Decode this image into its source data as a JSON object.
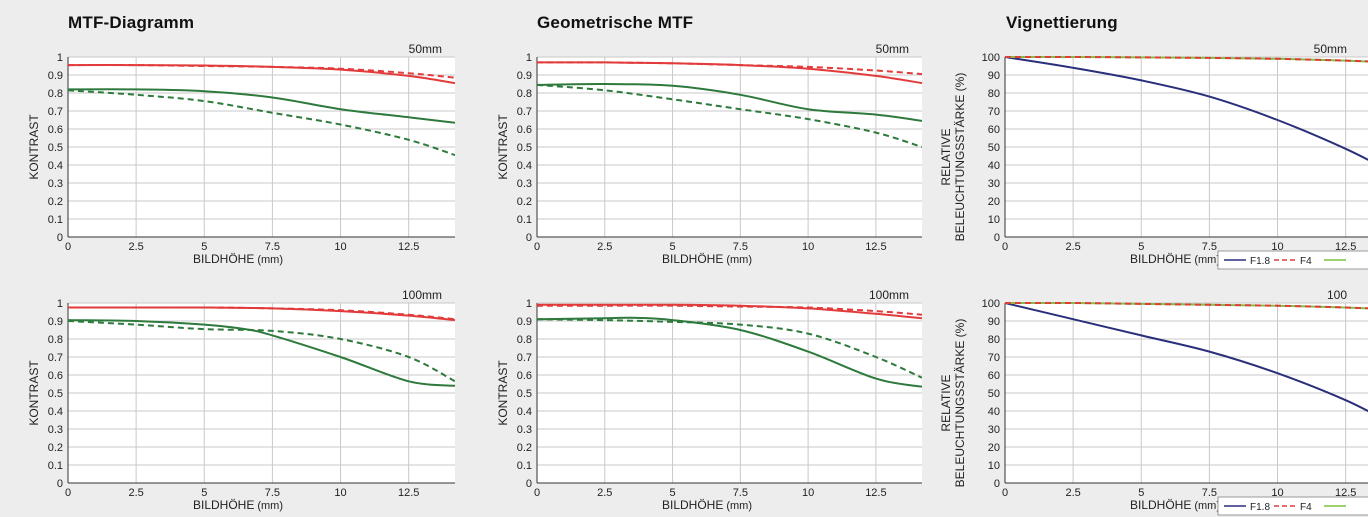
{
  "titles": {
    "mtf": "MTF-Diagramm",
    "geo": "Geometrische MTF",
    "vig": "Vignettierung"
  },
  "colors": {
    "red": "#e23b3b",
    "green": "#2e7a3c",
    "navy": "#2a2f7a",
    "lightgreen": "#7cc242",
    "grid": "#c9c9c9"
  },
  "chart_data": [
    {
      "id": "mtf-50",
      "type": "line",
      "panel": "MTF-Diagramm",
      "annotation": "50mm",
      "xlabel": "BILDHÖHE",
      "xlabel_unit": "(mm)",
      "ylabel": "KONTRAST",
      "xlim": [
        0,
        14.2
      ],
      "ylim": [
        0,
        1
      ],
      "xticks": [
        0,
        2.5,
        5,
        7.5,
        10,
        12.5
      ],
      "yticks": [
        0,
        0.1,
        0.2,
        0.3,
        0.4,
        0.5,
        0.6,
        0.7,
        0.8,
        0.9,
        1
      ],
      "ytick_labels": [
        "0",
        "0.1",
        "0.2",
        "0.3",
        "0.4",
        "0.5",
        "0.6",
        "0.7",
        "0.8",
        "0.9",
        "1"
      ],
      "grid": true,
      "series": [
        {
          "color": "red",
          "dash": false,
          "x": [
            0,
            2.5,
            5,
            7.5,
            10,
            12.5,
            14.2
          ],
          "y": [
            0.955,
            0.955,
            0.953,
            0.945,
            0.93,
            0.895,
            0.855
          ]
        },
        {
          "color": "red",
          "dash": true,
          "x": [
            0,
            2.5,
            5,
            7.5,
            10,
            12.5,
            14.2
          ],
          "y": [
            0.955,
            0.955,
            0.95,
            0.945,
            0.935,
            0.91,
            0.885
          ]
        },
        {
          "color": "green",
          "dash": false,
          "x": [
            0,
            2.5,
            5,
            7.5,
            10,
            12.5,
            14.2
          ],
          "y": [
            0.82,
            0.82,
            0.81,
            0.775,
            0.71,
            0.665,
            0.635
          ]
        },
        {
          "color": "green",
          "dash": true,
          "x": [
            0,
            2.5,
            5,
            7.5,
            10,
            12.5,
            14.2
          ],
          "y": [
            0.815,
            0.79,
            0.755,
            0.69,
            0.625,
            0.54,
            0.455
          ]
        }
      ]
    },
    {
      "id": "mtf-100",
      "type": "line",
      "panel": "MTF-Diagramm",
      "annotation": "100mm",
      "xlabel": "BILDHÖHE",
      "xlabel_unit": "(mm)",
      "ylabel": "KONTRAST",
      "xlim": [
        0,
        14.2
      ],
      "ylim": [
        0,
        1
      ],
      "xticks": [
        0,
        2.5,
        5,
        7.5,
        10,
        12.5
      ],
      "yticks": [
        0,
        0.1,
        0.2,
        0.3,
        0.4,
        0.5,
        0.6,
        0.7,
        0.8,
        0.9,
        1
      ],
      "ytick_labels": [
        "0",
        "0.1",
        "0.2",
        "0.3",
        "0.4",
        "0.5",
        "0.6",
        "0.7",
        "0.8",
        "0.9",
        "1"
      ],
      "grid": true,
      "series": [
        {
          "color": "red",
          "dash": false,
          "x": [
            0,
            2.5,
            5,
            7.5,
            10,
            12.5,
            14.2
          ],
          "y": [
            0.975,
            0.975,
            0.975,
            0.97,
            0.955,
            0.93,
            0.905
          ]
        },
        {
          "color": "red",
          "dash": true,
          "x": [
            0,
            2.5,
            5,
            7.5,
            10,
            12.5,
            14.2
          ],
          "y": [
            0.975,
            0.975,
            0.975,
            0.97,
            0.96,
            0.935,
            0.91
          ]
        },
        {
          "color": "green",
          "dash": false,
          "x": [
            0,
            2.5,
            5,
            6.5,
            7.5,
            10,
            12.5,
            14.2
          ],
          "y": [
            0.905,
            0.9,
            0.88,
            0.855,
            0.82,
            0.7,
            0.565,
            0.54
          ]
        },
        {
          "color": "green",
          "dash": true,
          "x": [
            0,
            2.5,
            5,
            7.5,
            10,
            12.5,
            14.2
          ],
          "y": [
            0.9,
            0.88,
            0.855,
            0.845,
            0.8,
            0.7,
            0.565
          ]
        }
      ]
    },
    {
      "id": "geo-50",
      "type": "line",
      "panel": "Geometrische MTF",
      "annotation": "50mm",
      "xlabel": "BILDHÖHE",
      "xlabel_unit": "(mm)",
      "ylabel": "KONTRAST",
      "xlim": [
        0,
        14.2
      ],
      "ylim": [
        0,
        1
      ],
      "xticks": [
        0,
        2.5,
        5,
        7.5,
        10,
        12.5
      ],
      "yticks": [
        0,
        0.1,
        0.2,
        0.3,
        0.4,
        0.5,
        0.6,
        0.7,
        0.8,
        0.9,
        1
      ],
      "ytick_labels": [
        "0",
        "0.1",
        "0.2",
        "0.3",
        "0.4",
        "0.5",
        "0.6",
        "0.7",
        "0.8",
        "0.9",
        "1"
      ],
      "grid": true,
      "series": [
        {
          "color": "red",
          "dash": false,
          "x": [
            0,
            2.5,
            5,
            7.5,
            10,
            12.5,
            14.2
          ],
          "y": [
            0.97,
            0.97,
            0.965,
            0.955,
            0.935,
            0.895,
            0.855
          ]
        },
        {
          "color": "red",
          "dash": true,
          "x": [
            0,
            2.5,
            5,
            7.5,
            10,
            12.5,
            14.2
          ],
          "y": [
            0.97,
            0.97,
            0.965,
            0.955,
            0.945,
            0.925,
            0.905
          ]
        },
        {
          "color": "green",
          "dash": false,
          "x": [
            0,
            2.5,
            5,
            7.5,
            10,
            12.5,
            14.2
          ],
          "y": [
            0.845,
            0.85,
            0.84,
            0.79,
            0.71,
            0.68,
            0.645
          ]
        },
        {
          "color": "green",
          "dash": true,
          "x": [
            0,
            2.5,
            5,
            7.5,
            10,
            12.5,
            14.2
          ],
          "y": [
            0.845,
            0.815,
            0.765,
            0.71,
            0.655,
            0.58,
            0.5
          ]
        }
      ]
    },
    {
      "id": "geo-100",
      "type": "line",
      "panel": "Geometrische MTF",
      "annotation": "100mm",
      "xlabel": "BILDHÖHE",
      "xlabel_unit": "(mm)",
      "ylabel": "KONTRAST",
      "xlim": [
        0,
        14.2
      ],
      "ylim": [
        0,
        1
      ],
      "xticks": [
        0,
        2.5,
        5,
        7.5,
        10,
        12.5
      ],
      "yticks": [
        0,
        0.1,
        0.2,
        0.3,
        0.4,
        0.5,
        0.6,
        0.7,
        0.8,
        0.9,
        1
      ],
      "ytick_labels": [
        "0",
        "0.1",
        "0.2",
        "0.3",
        "0.4",
        "0.5",
        "0.6",
        "0.7",
        "0.8",
        "0.9",
        "1"
      ],
      "grid": true,
      "series": [
        {
          "color": "red",
          "dash": false,
          "x": [
            0,
            2.5,
            5,
            7.5,
            10,
            12.5,
            14.2
          ],
          "y": [
            0.99,
            0.99,
            0.99,
            0.985,
            0.97,
            0.94,
            0.915
          ]
        },
        {
          "color": "red",
          "dash": true,
          "x": [
            0,
            2.5,
            5,
            7.5,
            10,
            12.5,
            14.2
          ],
          "y": [
            0.985,
            0.985,
            0.985,
            0.98,
            0.975,
            0.955,
            0.935
          ]
        },
        {
          "color": "green",
          "dash": false,
          "x": [
            0,
            2.5,
            3.5,
            5,
            7.5,
            10,
            12.5,
            14.2
          ],
          "y": [
            0.91,
            0.915,
            0.918,
            0.905,
            0.85,
            0.73,
            0.58,
            0.535
          ]
        },
        {
          "color": "green",
          "dash": true,
          "x": [
            0,
            2.5,
            5,
            7.5,
            10,
            12.5,
            14.2
          ],
          "y": [
            0.91,
            0.905,
            0.895,
            0.88,
            0.83,
            0.7,
            0.585
          ]
        }
      ]
    },
    {
      "id": "vig-50",
      "type": "line",
      "panel": "Vignettierung",
      "annotation": "50mm",
      "xlabel": "BILDHÖHE",
      "xlabel_unit": "(mm)",
      "ylabel": "RELATIVE BELEUCHTUNGSSTÄRKE (%)",
      "ylabel_lines": [
        "RELATIVE",
        "BELEUCHTUNGSSTÄRKE (%)"
      ],
      "xlim": [
        0,
        14.2
      ],
      "ylim": [
        0,
        100
      ],
      "xticks": [
        0,
        2.5,
        5,
        7.5,
        10,
        12.5
      ],
      "yticks": [
        0,
        10,
        20,
        30,
        40,
        50,
        60,
        70,
        80,
        90,
        100
      ],
      "ytick_labels": [
        "0",
        "10",
        "20",
        "30",
        "40",
        "50",
        "60",
        "70",
        "80",
        "90",
        "100"
      ],
      "grid": true,
      "legend": {
        "placement": "bottom-right",
        "entries": [
          {
            "label": "F1.8",
            "color": "navy",
            "dash": false
          },
          {
            "label": "F4",
            "color": "red",
            "dash": true
          },
          {
            "label": "",
            "color": "lightgreen",
            "dash": false
          }
        ]
      },
      "series": [
        {
          "color": "navy",
          "dash": false,
          "x": [
            0,
            2.5,
            5,
            7.5,
            10,
            12.5,
            14.2
          ],
          "y": [
            100,
            94,
            87,
            78,
            65,
            49,
            36
          ]
        },
        {
          "color": "lightgreen",
          "dash": false,
          "x": [
            0,
            2.5,
            5,
            7.5,
            10,
            12.5,
            14.2
          ],
          "y": [
            100,
            100,
            99.8,
            99.5,
            99,
            98,
            97
          ]
        },
        {
          "color": "red",
          "dash": true,
          "x": [
            0,
            2.5,
            5,
            7.5,
            10,
            12.5,
            14.2
          ],
          "y": [
            100,
            100,
            99.8,
            99.5,
            99,
            98,
            97
          ]
        }
      ]
    },
    {
      "id": "vig-100",
      "type": "line",
      "panel": "Vignettierung",
      "annotation": "100",
      "xlabel": "BILDHÖHE",
      "xlabel_unit": "(mm)",
      "ylabel": "RELATIVE BELEUCHTUNGSSTÄRKE (%)",
      "ylabel_lines": [
        "RELATIVE",
        "BELEUCHTUNGSSTÄRKE (%)"
      ],
      "xlim": [
        0,
        14.2
      ],
      "ylim": [
        0,
        100
      ],
      "xticks": [
        0,
        2.5,
        5,
        7.5,
        10,
        12.5
      ],
      "yticks": [
        0,
        10,
        20,
        30,
        40,
        50,
        60,
        70,
        80,
        90,
        100
      ],
      "ytick_labels": [
        "0",
        "10",
        "20",
        "30",
        "40",
        "50",
        "60",
        "70",
        "80",
        "90",
        "100"
      ],
      "grid": true,
      "legend": {
        "placement": "bottom-right",
        "entries": [
          {
            "label": "F1.8",
            "color": "navy",
            "dash": false
          },
          {
            "label": "F4",
            "color": "red",
            "dash": true
          },
          {
            "label": "",
            "color": "lightgreen",
            "dash": false
          }
        ]
      },
      "series": [
        {
          "color": "navy",
          "dash": false,
          "x": [
            0,
            2.5,
            5,
            7.5,
            10,
            12.5,
            14.2
          ],
          "y": [
            100,
            91,
            82,
            73,
            61,
            46,
            33
          ]
        },
        {
          "color": "lightgreen",
          "dash": false,
          "x": [
            0,
            2.5,
            5,
            7.5,
            10,
            12.5,
            14.2
          ],
          "y": [
            100,
            100,
            99.5,
            99,
            98.5,
            97.5,
            96.5
          ]
        },
        {
          "color": "red",
          "dash": true,
          "x": [
            0,
            2.5,
            5,
            7.5,
            10,
            12.5,
            14.2
          ],
          "y": [
            100,
            100,
            99.5,
            99,
            98.5,
            97.5,
            96.5
          ]
        }
      ]
    }
  ]
}
